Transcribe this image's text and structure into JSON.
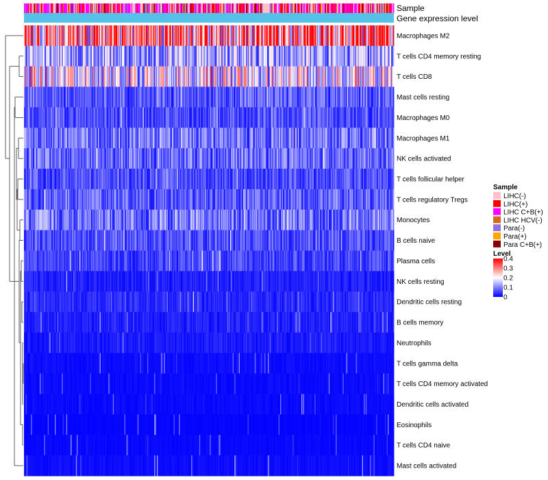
{
  "chart_data": {
    "type": "heatmap",
    "title": "",
    "n_columns": 420,
    "top_annotations": [
      "Sample",
      "Gene expression level"
    ],
    "annotation_colors": {
      "gene_expression_level": "#55c1e9"
    },
    "rows": [
      {
        "label": "Macrophages M2",
        "mean": 0.3
      },
      {
        "label": "T cells CD4 memory resting",
        "mean": 0.13
      },
      {
        "label": "T cells CD8",
        "mean": 0.18
      },
      {
        "label": "Mast cells resting",
        "mean": 0.07
      },
      {
        "label": "Macrophages M0",
        "mean": 0.06
      },
      {
        "label": "Macrophages M1",
        "mean": 0.09
      },
      {
        "label": "NK cells activated",
        "mean": 0.08
      },
      {
        "label": "T cells follicular helper",
        "mean": 0.06
      },
      {
        "label": "T cells regulatory  Tregs",
        "mean": 0.07
      },
      {
        "label": "Monocytes",
        "mean": 0.09
      },
      {
        "label": "B cells naive",
        "mean": 0.06
      },
      {
        "label": "Plasma cells",
        "mean": 0.05
      },
      {
        "label": "NK cells resting",
        "mean": 0.025
      },
      {
        "label": "Dendritic cells resting",
        "mean": 0.03
      },
      {
        "label": "B cells memory",
        "mean": 0.025
      },
      {
        "label": "Neutrophils",
        "mean": 0.02
      },
      {
        "label": "T cells gamma delta",
        "mean": 0.01
      },
      {
        "label": "T cells CD4 memory activated",
        "mean": 0.008
      },
      {
        "label": "Dendritic cells activated",
        "mean": 0.008
      },
      {
        "label": "Eosinophils",
        "mean": 0.004
      },
      {
        "label": "T cells CD4 naive",
        "mean": 0.006
      },
      {
        "label": "Mast cells activated",
        "mean": 0.01
      }
    ],
    "legend": {
      "sample_title": "Sample",
      "sample_groups": [
        {
          "label": "LIHC(-)",
          "color": "#ffc0cb"
        },
        {
          "label": "LIHC(+)",
          "color": "#ff0000"
        },
        {
          "label": "LIHC C+B(+)",
          "color": "#ff00ff"
        },
        {
          "label": "LIHC HCV(-)",
          "color": "#d2691e"
        },
        {
          "label": "Para(-)",
          "color": "#9370db"
        },
        {
          "label": "Para(+)",
          "color": "#ffa500"
        },
        {
          "label": "Para C+B(+)",
          "color": "#8b0000"
        }
      ],
      "level_title": "Level",
      "level_ticks": [
        "0.4",
        "0.3",
        "0.2",
        "0.1",
        "0"
      ],
      "level_range": [
        0,
        0.4
      ],
      "level_colors": [
        "#0000ff",
        "#ffffff",
        "#ff0000"
      ]
    }
  }
}
